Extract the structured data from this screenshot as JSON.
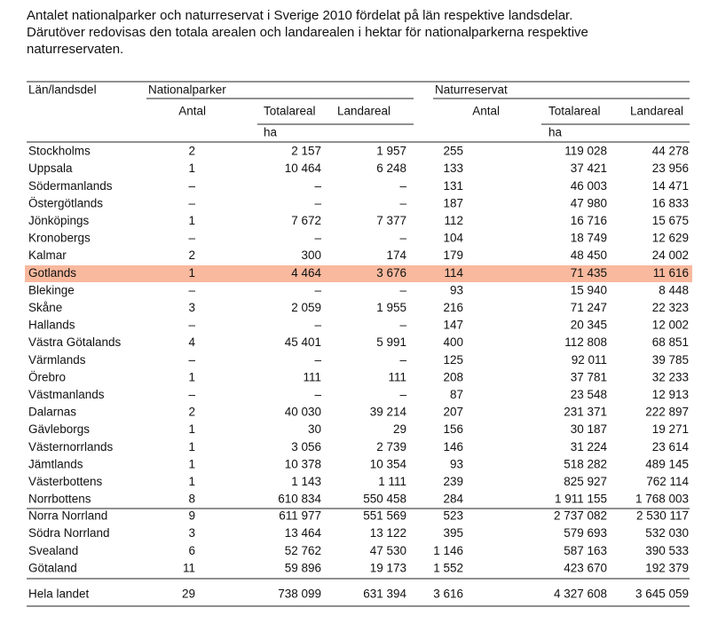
{
  "caption": [
    "Antalet nationalparker och naturreservat i Sverige 2010 fördelat på län respektive landsdelar.",
    "Därutöver redovisas den totala arealen och landarealen i hektar för nationalparkerna respektive",
    "naturreservaten."
  ],
  "header": {
    "region": "Län/landsdel",
    "national_parks": "Nationalparker",
    "nature_reserves": "Naturreservat",
    "columns": [
      "Antal",
      "Totalareal",
      "Landareal",
      "Antal",
      "Totalareal",
      "Landareal"
    ],
    "unit_np": "ha",
    "unit_nr": "ha"
  },
  "county_rows": [
    [
      "Stockholms",
      "2",
      "2 157",
      "1 957",
      "255",
      "119 028",
      "44 278"
    ],
    [
      "Uppsala",
      "1",
      "10 464",
      "6 248",
      "133",
      "37 421",
      "23 956"
    ],
    [
      "Södermanlands",
      "–",
      "–",
      "–",
      "131",
      "46 003",
      "14 471"
    ],
    [
      "Östergötlands",
      "–",
      "–",
      "–",
      "187",
      "47 980",
      "16 833"
    ],
    [
      "Jönköpings",
      "1",
      "7 672",
      "7 377",
      "112",
      "16 716",
      "15 675"
    ],
    [
      "Kronobergs",
      "–",
      "–",
      "–",
      "104",
      "18 749",
      "12 629"
    ],
    [
      "Kalmar",
      "2",
      "300",
      "174",
      "179",
      "48 450",
      "24 002"
    ],
    [
      "Gotlands",
      "1",
      "4 464",
      "3 676",
      "114",
      "71 435",
      "11 616"
    ],
    [
      "Blekinge",
      "–",
      "–",
      "–",
      "93",
      "15 940",
      "8 448"
    ],
    [
      "Skåne",
      "3",
      "2 059",
      "1 955",
      "216",
      "71 247",
      "22 323"
    ],
    [
      "Hallands",
      "–",
      "–",
      "–",
      "147",
      "20 345",
      "12 002"
    ],
    [
      "Västra Götalands",
      "4",
      "45 401",
      "5 991",
      "400",
      "112 808",
      "68 851"
    ],
    [
      "Värmlands",
      "–",
      "–",
      "–",
      "125",
      "92 011",
      "39 785"
    ],
    [
      "Örebro",
      "1",
      "111",
      "111",
      "208",
      "37 781",
      "32 233"
    ],
    [
      "Västmanlands",
      "–",
      "–",
      "–",
      "87",
      "23 548",
      "12 913"
    ],
    [
      "Dalarnas",
      "2",
      "40 030",
      "39 214",
      "207",
      "231 371",
      "222 897"
    ],
    [
      "Gävleborgs",
      "1",
      "30",
      "29",
      "156",
      "30 187",
      "19 271"
    ],
    [
      "Västernorrlands",
      "1",
      "3 056",
      "2 739",
      "146",
      "31 224",
      "23 614"
    ],
    [
      "Jämtlands",
      "1",
      "10 378",
      "10 354",
      "93",
      "518 282",
      "489 145"
    ],
    [
      "Västerbottens",
      "1",
      "1 143",
      "1 111",
      "239",
      "825 927",
      "762 114"
    ],
    [
      "Norrbottens",
      "8",
      "610 834",
      "550 458",
      "284",
      "1 911 155",
      "1 768 003"
    ]
  ],
  "region_rows": [
    [
      "Norra Norrland",
      "9",
      "611 977",
      "551 569",
      "523",
      "2 737 082",
      "2 530 117"
    ],
    [
      "Södra Norrland",
      "3",
      "13 464",
      "13 122",
      "395",
      "579 693",
      "532 030"
    ],
    [
      "Svealand",
      "6",
      "52 762",
      "47 530",
      "1 146",
      "587 163",
      "390 533"
    ],
    [
      "Götaland",
      "11",
      "59 896",
      "19 173",
      "1 552",
      "423 670",
      "192 379"
    ]
  ],
  "total_row": [
    "Hela landet",
    "29",
    "738 099",
    "631 394",
    "3 616",
    "4 327 608",
    "3 645 059"
  ]
}
